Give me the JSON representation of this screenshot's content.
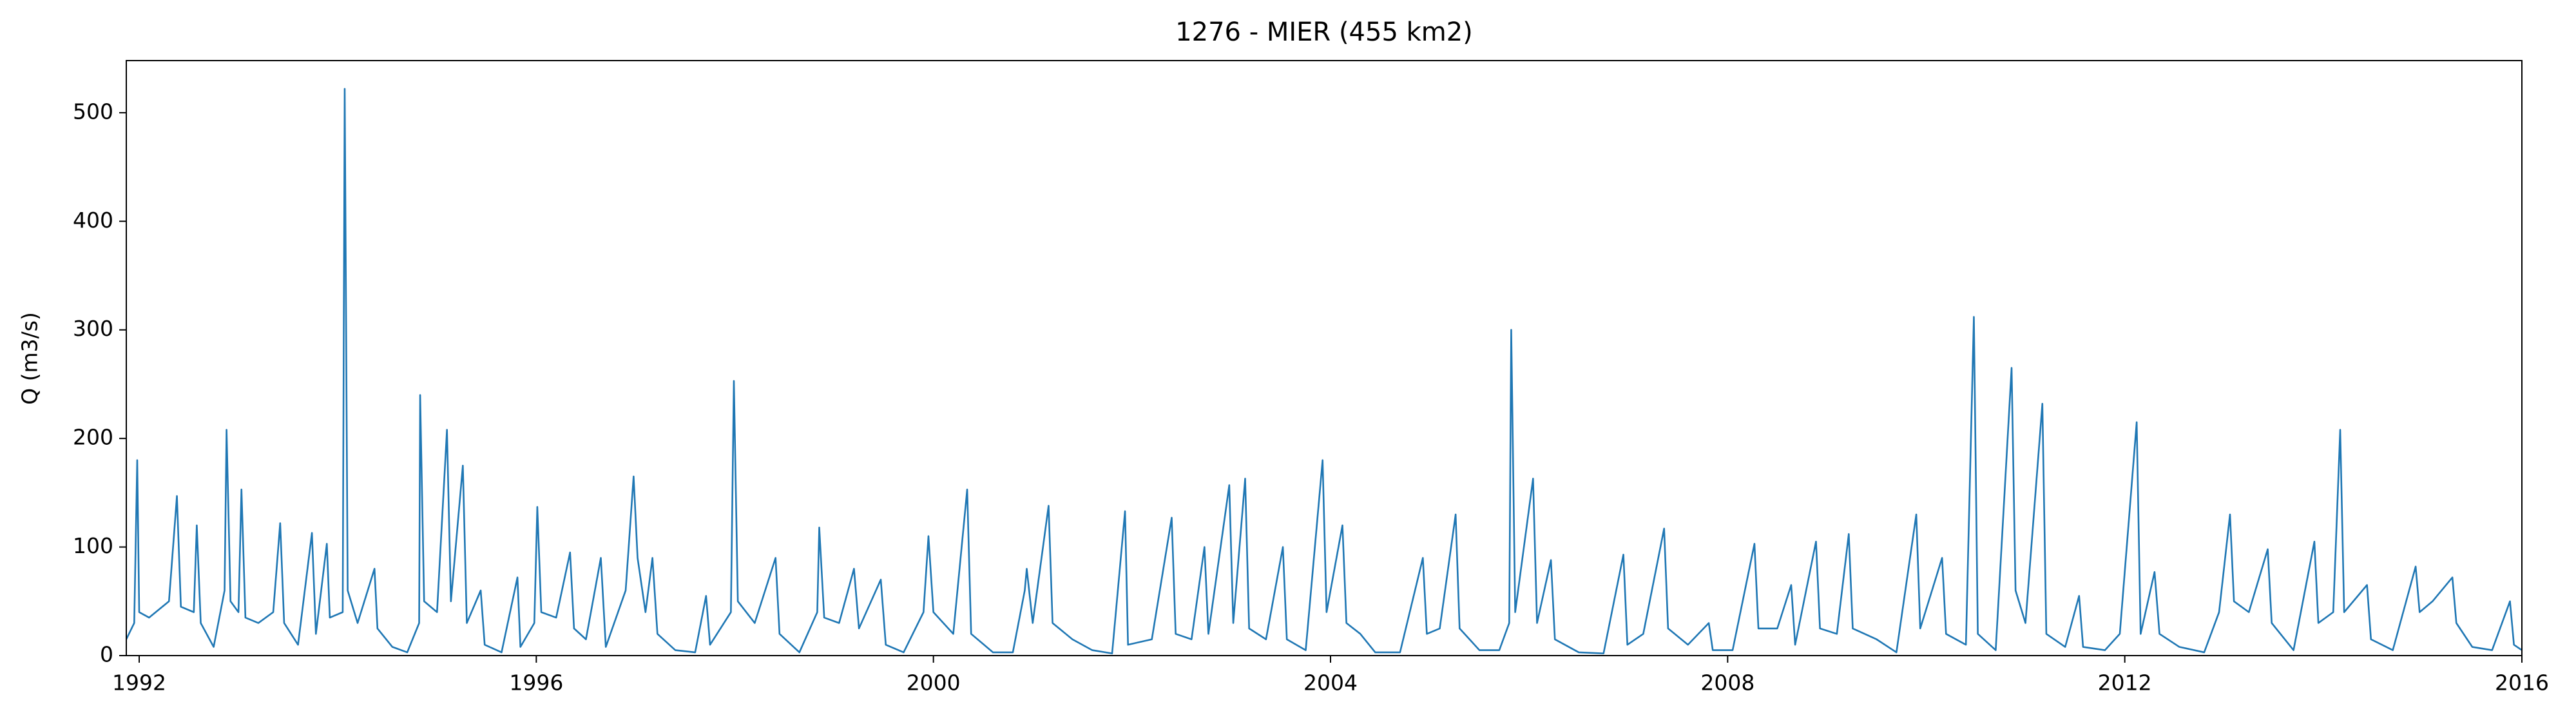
{
  "chart_data": {
    "type": "line",
    "title": "1276 - MIER (455 km2)",
    "ylabel": "Q (m3/s)",
    "xlim": [
      1991.87,
      2016.0
    ],
    "ylim": [
      0,
      548
    ],
    "xticks": [
      1992,
      1996,
      2000,
      2004,
      2008,
      2012,
      2016
    ],
    "yticks": [
      0,
      100,
      200,
      300,
      400,
      500
    ],
    "grid": false,
    "x": [
      1991.87,
      1991.95,
      1991.98,
      1992.0,
      1992.1,
      1992.3,
      1992.38,
      1992.42,
      1992.55,
      1992.58,
      1992.62,
      1992.75,
      1992.86,
      1992.88,
      1992.92,
      1993.0,
      1993.03,
      1993.07,
      1993.2,
      1993.35,
      1993.42,
      1993.46,
      1993.6,
      1993.74,
      1993.78,
      1993.89,
      1993.92,
      1994.05,
      1994.07,
      1994.1,
      1994.2,
      1994.37,
      1994.4,
      1994.55,
      1994.7,
      1994.82,
      1994.83,
      1994.87,
      1995.0,
      1995.1,
      1995.14,
      1995.26,
      1995.3,
      1995.44,
      1995.48,
      1995.65,
      1995.81,
      1995.84,
      1995.98,
      1996.01,
      1996.05,
      1996.2,
      1996.34,
      1996.38,
      1996.5,
      1996.65,
      1996.7,
      1996.9,
      1996.98,
      1997.02,
      1997.1,
      1997.17,
      1997.22,
      1997.4,
      1997.6,
      1997.71,
      1997.75,
      1997.96,
      1997.99,
      1998.03,
      1998.2,
      1998.41,
      1998.45,
      1998.65,
      1998.83,
      1998.85,
      1998.9,
      1999.05,
      1999.2,
      1999.25,
      1999.47,
      1999.52,
      1999.7,
      1999.9,
      1999.95,
      2000.0,
      2000.2,
      2000.34,
      2000.38,
      2000.6,
      2000.8,
      2000.92,
      2000.94,
      2001.0,
      2001.16,
      2001.2,
      2001.4,
      2001.6,
      2001.8,
      2001.93,
      2001.96,
      2002.2,
      2002.4,
      2002.44,
      2002.6,
      2002.73,
      2002.77,
      2002.98,
      2003.02,
      2003.14,
      2003.18,
      2003.35,
      2003.52,
      2003.56,
      2003.75,
      2003.92,
      2003.96,
      2004.12,
      2004.16,
      2004.3,
      2004.45,
      2004.7,
      2004.93,
      2004.97,
      2005.1,
      2005.26,
      2005.3,
      2005.5,
      2005.7,
      2005.8,
      2005.82,
      2005.86,
      2006.04,
      2006.08,
      2006.22,
      2006.26,
      2006.5,
      2006.75,
      2006.95,
      2006.99,
      2007.15,
      2007.36,
      2007.4,
      2007.6,
      2007.81,
      2007.85,
      2008.05,
      2008.27,
      2008.31,
      2008.5,
      2008.64,
      2008.68,
      2008.89,
      2008.93,
      2009.1,
      2009.22,
      2009.26,
      2009.5,
      2009.7,
      2009.9,
      2009.94,
      2010.16,
      2010.2,
      2010.4,
      2010.48,
      2010.52,
      2010.7,
      2010.86,
      2010.9,
      2011.0,
      2011.17,
      2011.21,
      2011.4,
      2011.54,
      2011.58,
      2011.8,
      2011.95,
      2012.12,
      2012.16,
      2012.3,
      2012.35,
      2012.55,
      2012.8,
      2012.95,
      2013.06,
      2013.1,
      2013.25,
      2013.44,
      2013.48,
      2013.7,
      2013.91,
      2013.95,
      2014.1,
      2014.17,
      2014.21,
      2014.44,
      2014.48,
      2014.7,
      2014.93,
      2014.97,
      2015.1,
      2015.3,
      2015.34,
      2015.5,
      2015.7,
      2015.88,
      2015.92,
      2016.0
    ],
    "series": [
      {
        "color": "#1f77b4",
        "values": [
          15,
          30,
          180,
          40,
          35,
          50,
          147,
          45,
          40,
          120,
          30,
          8,
          60,
          208,
          50,
          40,
          153,
          35,
          30,
          40,
          122,
          30,
          10,
          113,
          20,
          103,
          35,
          40,
          522,
          60,
          30,
          80,
          25,
          8,
          3,
          30,
          240,
          50,
          40,
          208,
          50,
          175,
          30,
          60,
          10,
          3,
          72,
          8,
          30,
          137,
          40,
          35,
          95,
          25,
          15,
          90,
          8,
          60,
          165,
          90,
          40,
          90,
          20,
          5,
          3,
          55,
          10,
          40,
          253,
          50,
          30,
          90,
          20,
          3,
          40,
          118,
          35,
          30,
          80,
          25,
          70,
          10,
          3,
          40,
          110,
          40,
          20,
          153,
          20,
          3,
          3,
          60,
          80,
          30,
          138,
          30,
          15,
          5,
          2,
          133,
          10,
          15,
          127,
          20,
          15,
          100,
          20,
          157,
          30,
          163,
          25,
          15,
          100,
          15,
          5,
          180,
          40,
          120,
          30,
          20,
          3,
          3,
          90,
          20,
          25,
          130,
          25,
          5,
          5,
          30,
          300,
          40,
          163,
          30,
          88,
          15,
          3,
          2,
          93,
          10,
          20,
          117,
          25,
          10,
          30,
          5,
          5,
          103,
          25,
          25,
          65,
          10,
          105,
          25,
          20,
          112,
          25,
          15,
          3,
          130,
          25,
          90,
          20,
          10,
          312,
          20,
          5,
          265,
          60,
          30,
          232,
          20,
          8,
          55,
          8,
          5,
          20,
          215,
          20,
          77,
          20,
          8,
          3,
          40,
          130,
          50,
          40,
          98,
          30,
          5,
          105,
          30,
          40,
          208,
          40,
          65,
          15,
          5,
          82,
          40,
          50,
          72,
          30,
          8,
          5,
          50,
          10,
          5
        ]
      }
    ]
  }
}
